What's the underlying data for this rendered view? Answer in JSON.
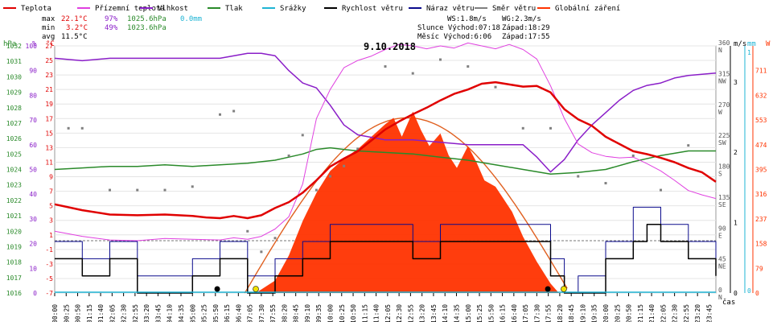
{
  "legend": [
    {
      "label": "Teplota",
      "color": "#e00000"
    },
    {
      "label": "Přízemní teplota",
      "color": "#e040e0"
    },
    {
      "label": "Vlhkost",
      "color": "#8a1ec8"
    },
    {
      "label": "Tlak",
      "color": "#2a8a2a"
    },
    {
      "label": "Srážky",
      "color": "#1fb4d4"
    },
    {
      "label": "Rychlost větru",
      "color": "#000000"
    },
    {
      "label": "Náraz větru",
      "color": "#0a0a8c"
    },
    {
      "label": "Směr větru",
      "color": "#808080"
    },
    {
      "label": "Globální záření",
      "color": "#ff3300"
    }
  ],
  "stats": {
    "max_label": "max",
    "max_t": "22.1°C",
    "max_h": "97%",
    "max_p": "1025.6hPa",
    "max_r": "0.0mm",
    "min_label": "min",
    "min_t": "3.2°C",
    "min_h": "49%",
    "min_p": "1023.6hPa",
    "avg_label": "avg",
    "avg_t": "11.5°C"
  },
  "wind_info": {
    "ws": "WS:1.8m/s",
    "wg": "WG:2.3m/s"
  },
  "sun_info": {
    "sun": "Slunce Východ:07:18",
    "sun_set": "Západ:18:29",
    "moon": "Měsíc Východ:6:06",
    "moon_set": "Západ:17:55"
  },
  "date": "9.10.2018",
  "axis_units": {
    "hpa": "hPa",
    "pct": "%",
    "degc": "°C",
    "ms": "m/s",
    "mm": "mm",
    "w": "W",
    "time": "čas"
  },
  "colors": {
    "temp": "#e00000",
    "ground": "#e040e0",
    "humidity": "#8a1ec8",
    "pressure": "#2a8a2a",
    "rain": "#1fb4d4",
    "wind": "#000000",
    "gust": "#0a0a8c",
    "dir": "#808080",
    "radiation": "#ff3300",
    "radiation_curve": "#e06020"
  },
  "chart_data": {
    "type": "line",
    "date": "9.10.2018",
    "x_ticks": [
      "00:00",
      "00:25",
      "00:50",
      "01:15",
      "01:40",
      "02:05",
      "02:30",
      "02:55",
      "03:20",
      "03:45",
      "04:10",
      "04:35",
      "05:00",
      "05:25",
      "05:50",
      "06:15",
      "06:40",
      "07:05",
      "07:30",
      "07:55",
      "08:20",
      "08:45",
      "09:10",
      "09:35",
      "10:00",
      "10:25",
      "10:50",
      "11:15",
      "11:40",
      "12:05",
      "12:30",
      "12:55",
      "13:20",
      "13:45",
      "14:10",
      "14:35",
      "15:00",
      "15:25",
      "15:50",
      "16:15",
      "16:40",
      "17:05",
      "17:30",
      "17:55",
      "18:20",
      "18:45",
      "19:10",
      "19:35",
      "20:00",
      "20:25",
      "20:50",
      "21:15",
      "21:40",
      "22:05",
      "22:30",
      "22:55",
      "23:20",
      "23:45"
    ],
    "axes": {
      "pressure_hpa": {
        "min": 1016,
        "max": 1032,
        "ticks": [
          1016,
          1017,
          1018,
          1019,
          1020,
          1021,
          1022,
          1023,
          1024,
          1025,
          1026,
          1027,
          1028,
          1029,
          1030,
          1031,
          1032
        ]
      },
      "humidity_pct": {
        "min": 0,
        "max": 100,
        "ticks": [
          0,
          10,
          20,
          30,
          40,
          50,
          60,
          70,
          80,
          90,
          100
        ]
      },
      "temperature_c": {
        "min": -7,
        "max": 27,
        "ticks": [
          -7,
          -5,
          -3,
          -1,
          1,
          3,
          5,
          7,
          9,
          11,
          13,
          15,
          17,
          19,
          21,
          23,
          25,
          27
        ]
      },
      "wind_dir": {
        "ticks": [
          [
            0,
            "N"
          ],
          [
            45,
            "NE"
          ],
          [
            90,
            "E"
          ],
          [
            135,
            "SE"
          ],
          [
            180,
            "S"
          ],
          [
            225,
            "SW"
          ],
          [
            270,
            "W"
          ],
          [
            315,
            "NW"
          ],
          [
            360,
            "N"
          ]
        ]
      },
      "wind_ms": {
        "ticks": [
          0,
          1,
          2,
          3
        ]
      },
      "rain_mm": {
        "ticks": [
          0,
          1
        ]
      },
      "radiation_w": {
        "ticks": [
          0,
          79,
          158,
          237,
          316,
          395,
          474,
          553,
          632,
          711
        ]
      }
    },
    "series": [
      {
        "name": "Teplota",
        "unit": "°C",
        "x": [
          0,
          1,
          2,
          3,
          4,
          5,
          5.5,
          6,
          6.5,
          7,
          7.5,
          8,
          8.5,
          9,
          9.5,
          10,
          10.5,
          11,
          11.5,
          12,
          12.5,
          13,
          13.5,
          14,
          14.5,
          15,
          15.5,
          16,
          16.5,
          17,
          17.5,
          18,
          18.5,
          19,
          19.5,
          20,
          20.5,
          21,
          21.5,
          22,
          22.5,
          23,
          23.5,
          24
        ],
        "values": [
          5.2,
          4.4,
          3.8,
          3.7,
          3.8,
          3.6,
          3.4,
          3.3,
          3.6,
          3.3,
          3.7,
          4.7,
          5.5,
          6.8,
          8.5,
          10.4,
          11.5,
          12.5,
          14.0,
          15.5,
          16.6,
          17.6,
          18.5,
          19.5,
          20.4,
          21.0,
          21.8,
          22.0,
          21.7,
          21.4,
          21.5,
          20.6,
          18.3,
          16.9,
          16.0,
          14.5,
          13.5,
          12.5,
          12.1,
          11.6,
          11.0,
          10.2,
          9.6,
          8.3
        ]
      },
      {
        "name": "Přízemní teplota",
        "unit": "°C",
        "x": [
          0,
          1,
          2,
          3,
          4,
          5,
          6,
          6.5,
          7,
          7.5,
          8,
          8.5,
          9,
          9.5,
          10,
          10.5,
          11,
          11.5,
          12,
          12.5,
          13,
          13.5,
          14,
          14.5,
          15,
          15.5,
          16,
          16.5,
          17,
          17.5,
          18,
          18.5,
          19,
          19.5,
          20,
          20.5,
          21,
          21.5,
          22,
          22.5,
          23,
          23.5,
          24
        ],
        "values": [
          1.5,
          0.8,
          0.3,
          0.2,
          0.5,
          0.4,
          0.3,
          0.6,
          0.4,
          0.8,
          1.8,
          3.5,
          8.0,
          17.0,
          21.0,
          24.0,
          25.0,
          25.6,
          26.5,
          27.2,
          27.0,
          26.6,
          27.0,
          26.7,
          27.4,
          27.0,
          26.6,
          27.2,
          26.5,
          25.2,
          21.5,
          17.0,
          13.5,
          12.3,
          11.8,
          11.6,
          11.7,
          10.8,
          9.8,
          8.5,
          7.1,
          6.5,
          6.0
        ]
      },
      {
        "name": "Vlhkost",
        "unit": "%",
        "x": [
          0,
          1,
          2,
          3,
          4,
          5,
          6,
          7,
          7.5,
          8,
          8.5,
          9,
          9.5,
          10,
          10.5,
          11,
          11.5,
          12,
          13,
          14,
          15,
          16,
          17,
          17.5,
          18,
          18.5,
          19,
          19.5,
          20,
          20.5,
          21,
          21.5,
          22,
          22.5,
          23,
          24
        ],
        "values": [
          95,
          94,
          95,
          95,
          95,
          95,
          95,
          97,
          97,
          96,
          90,
          85,
          83,
          76,
          68,
          64,
          63,
          62,
          62,
          61,
          60,
          60,
          60,
          55,
          49,
          54,
          62,
          68,
          73,
          78,
          82,
          84,
          85,
          87,
          88,
          89
        ]
      },
      {
        "name": "Tlak",
        "unit": "hPa",
        "x": [
          0,
          1,
          2,
          3,
          4,
          5,
          6,
          7,
          8,
          8.5,
          9,
          9.5,
          10,
          10.5,
          11,
          12,
          13,
          14,
          15,
          16,
          17,
          18,
          19,
          20,
          21,
          22,
          23,
          24
        ],
        "values": [
          1024.0,
          1024.1,
          1024.2,
          1024.2,
          1024.3,
          1024.2,
          1024.3,
          1024.4,
          1024.6,
          1024.8,
          1025.0,
          1025.3,
          1025.4,
          1025.3,
          1025.2,
          1025.1,
          1025.0,
          1024.8,
          1024.6,
          1024.3,
          1024.0,
          1023.7,
          1023.8,
          1024.0,
          1024.5,
          1024.9,
          1025.2,
          1025.2
        ]
      },
      {
        "name": "Srážky",
        "unit": "mm",
        "x": [
          0,
          24
        ],
        "values": [
          0.0,
          0.0
        ]
      },
      {
        "name": "Rychlost větru",
        "unit": "m/s",
        "x": [
          0,
          1,
          2,
          3,
          4,
          5,
          6,
          7,
          8,
          9,
          10,
          11,
          12,
          13,
          14,
          15,
          16,
          17,
          18,
          18.5,
          19,
          20,
          21,
          21.5,
          22,
          23,
          24
        ],
        "values": [
          1.0,
          0.5,
          1.0,
          0.0,
          0.0,
          0.5,
          1.0,
          0.0,
          0.5,
          1.0,
          1.5,
          1.5,
          1.5,
          1.0,
          1.5,
          1.5,
          1.5,
          1.5,
          0.5,
          0.0,
          0.0,
          1.0,
          1.5,
          2.0,
          1.5,
          1.0,
          0.5
        ]
      },
      {
        "name": "Náraz větru",
        "unit": "m/s",
        "x": [
          0,
          1,
          2,
          3,
          4,
          5,
          6,
          7,
          8,
          9,
          10,
          11,
          12,
          13,
          14,
          15,
          16,
          17,
          18,
          18.5,
          19,
          20,
          21,
          21.5,
          22,
          23,
          24
        ],
        "values": [
          1.5,
          1.0,
          1.5,
          0.5,
          0.5,
          1.0,
          1.5,
          0.5,
          1.0,
          1.5,
          2.0,
          2.0,
          2.0,
          1.5,
          2.0,
          2.0,
          2.0,
          2.0,
          1.0,
          0.0,
          0.5,
          1.5,
          2.5,
          2.5,
          2.0,
          1.5,
          1.0
        ]
      },
      {
        "name": "Směr větru",
        "unit": "°",
        "x": [
          0.5,
          1,
          2,
          3,
          4,
          5,
          6,
          6.5,
          7,
          7.5,
          8,
          8.5,
          9,
          9.5,
          10,
          10.5,
          11,
          12,
          13,
          14,
          15,
          16,
          17,
          18,
          19,
          20,
          21,
          22,
          23
        ],
        "values": [
          240,
          240,
          150,
          150,
          150,
          155,
          260,
          265,
          90,
          60,
          80,
          200,
          230,
          150,
          170,
          185,
          210,
          330,
          320,
          340,
          330,
          300,
          240,
          240,
          170,
          160,
          200,
          150,
          215
        ]
      },
      {
        "name": "Globální záření",
        "unit": "W",
        "x": [
          7.3,
          8,
          8.5,
          9,
          9.5,
          10,
          10.5,
          11,
          11.5,
          12,
          12.3,
          12.6,
          13,
          13.3,
          13.6,
          14,
          14.3,
          14.6,
          15,
          15.3,
          15.6,
          16,
          16.3,
          16.6,
          17,
          17.5,
          18,
          18.3
        ],
        "values": [
          0,
          40,
          120,
          230,
          320,
          390,
          430,
          460,
          500,
          540,
          560,
          500,
          580,
          520,
          470,
          510,
          440,
          400,
          470,
          420,
          360,
          340,
          300,
          260,
          180,
          100,
          30,
          0
        ]
      }
    ]
  }
}
